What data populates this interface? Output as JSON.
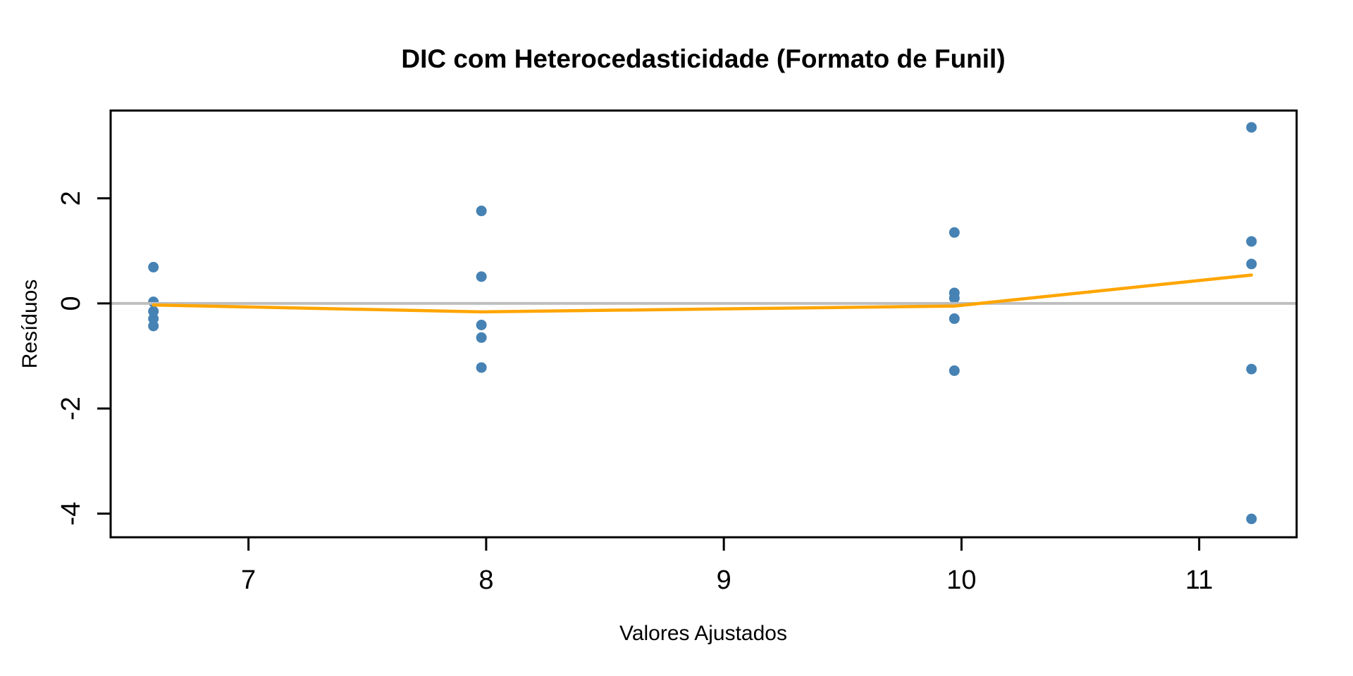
{
  "figure": {
    "background": "#FFFFFF"
  },
  "chart_data": {
    "type": "scatter",
    "title": "DIC com Heterocedasticidade (Formato de Funil)",
    "xlabel": "Valores Ajustados",
    "ylabel": "Resíduos",
    "xlim": [
      6.42,
      11.41
    ],
    "ylim": [
      -4.45,
      3.67
    ],
    "x_ticks": [
      7,
      8,
      9,
      10,
      11
    ],
    "y_ticks": [
      2,
      0,
      -2,
      -4
    ],
    "grid": false,
    "legend": null,
    "colors": {
      "points": "#4682B4",
      "smooth_line": "#FFA500",
      "zero_line": "#BEBEBE",
      "axis": "#000000",
      "background": "#FFFFFF"
    },
    "series": [
      {
        "name": "residuos-pontos",
        "type": "points",
        "marker": "filled-circle",
        "marker_radius": 7.5,
        "color": "#4682B4",
        "points": [
          [
            6.6,
            0.69
          ],
          [
            6.6,
            0.03
          ],
          [
            6.6,
            -0.15
          ],
          [
            6.6,
            -0.29
          ],
          [
            6.6,
            -0.43
          ],
          [
            7.98,
            1.76
          ],
          [
            7.98,
            0.51
          ],
          [
            7.98,
            -0.41
          ],
          [
            7.98,
            -0.65
          ],
          [
            7.98,
            -1.22
          ],
          [
            9.97,
            1.35
          ],
          [
            9.97,
            0.2
          ],
          [
            9.97,
            0.1
          ],
          [
            9.97,
            -0.29
          ],
          [
            9.97,
            -1.28
          ],
          [
            11.22,
            3.35
          ],
          [
            11.22,
            1.18
          ],
          [
            11.22,
            0.75
          ],
          [
            11.22,
            -1.25
          ],
          [
            11.22,
            -4.1
          ]
        ]
      },
      {
        "name": "linha-zero",
        "type": "hline",
        "y": 0,
        "color": "#BEBEBE",
        "width": 4
      },
      {
        "name": "suavizacao-lowess",
        "type": "line",
        "color": "#FFA500",
        "width": 4.5,
        "points": [
          [
            6.6,
            -0.03
          ],
          [
            7.98,
            -0.16
          ],
          [
            9.97,
            -0.05
          ],
          [
            11.22,
            0.54
          ]
        ]
      }
    ]
  }
}
